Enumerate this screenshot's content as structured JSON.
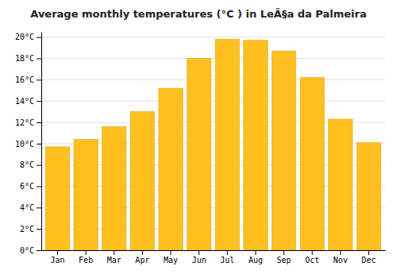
{
  "chart_data": {
    "type": "bar",
    "title": "Average monthly temperatures (°C ) in LeÃ§a da Palmeira",
    "categories": [
      "Jan",
      "Feb",
      "Mar",
      "Apr",
      "May",
      "Jun",
      "Jul",
      "Aug",
      "Sep",
      "Oct",
      "Nov",
      "Dec"
    ],
    "values": [
      9.7,
      10.4,
      11.6,
      13.0,
      15.2,
      18.0,
      19.8,
      19.7,
      18.7,
      16.2,
      12.3,
      10.1
    ],
    "color": "#FFC020",
    "ylim": [
      0,
      20.5
    ],
    "yticks": [
      {
        "value": 0,
        "label": "0°C"
      },
      {
        "value": 2,
        "label": "2°C"
      },
      {
        "value": 4,
        "label": "4°C"
      },
      {
        "value": 6,
        "label": "6°C"
      },
      {
        "value": 8,
        "label": "8°C"
      },
      {
        "value": 10,
        "label": "10°C"
      },
      {
        "value": 12,
        "label": "12°C"
      },
      {
        "value": 14,
        "label": "14°C"
      },
      {
        "value": 16,
        "label": "16°C"
      },
      {
        "value": 18,
        "label": "18°C"
      },
      {
        "value": 20,
        "label": "20°C"
      }
    ],
    "grid": true
  }
}
